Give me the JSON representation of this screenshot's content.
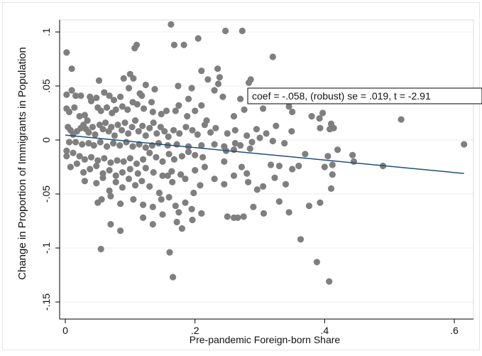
{
  "chart_data": {
    "type": "scatter",
    "title": "",
    "xlabel": "Pre-pandemic Foreign-born Share",
    "ylabel": "Change in Proportion of Immigrants in Population",
    "xlim": [
      0,
      0.62
    ],
    "ylim": [
      -0.155,
      0.112
    ],
    "x_ticks": [
      {
        "value": 0,
        "label": "0"
      },
      {
        "value": 0.2,
        "label": ".2"
      },
      {
        "value": 0.4,
        "label": ".4"
      },
      {
        "value": 0.6,
        "label": ".6"
      }
    ],
    "y_ticks": [
      {
        "value": 0.1,
        "label": ".1"
      },
      {
        "value": 0.05,
        "label": ".05"
      },
      {
        "value": 0,
        "label": "0"
      },
      {
        "value": -0.05,
        "label": "-.05"
      },
      {
        "value": -0.1,
        "label": "-.1"
      },
      {
        "value": -0.15,
        "label": "-.15"
      }
    ],
    "grid": "horizontal",
    "annotation": "coef = -.058, (robust) se = .019, t = -2.91",
    "fit_line": {
      "x": [
        0,
        0.615
      ],
      "y": [
        0.0045,
        -0.031
      ],
      "color": "#1f4e79"
    },
    "point_color": "#7f7f7f",
    "series": [
      {
        "points": [
          [
            0.163,
            0.107
          ],
          [
            0.168,
            0.088
          ],
          [
            0.183,
            0.088
          ],
          [
            0.205,
            0.094
          ],
          [
            0.247,
            0.101
          ],
          [
            0.273,
            0.101
          ],
          [
            0.107,
            0.085
          ],
          [
            0.11,
            0.088
          ],
          [
            0.002,
            0.081
          ],
          [
            0.01,
            0.066
          ],
          [
            0.32,
            0.077
          ],
          [
            0.21,
            0.064
          ],
          [
            0.235,
            0.066
          ],
          [
            0.052,
            0.055
          ],
          [
            0.09,
            0.057
          ],
          [
            0.1,
            0.061
          ],
          [
            0.105,
            0.057
          ],
          [
            0.124,
            0.051
          ],
          [
            0.138,
            0.047
          ],
          [
            0.174,
            0.05
          ],
          [
            0.195,
            0.048
          ],
          [
            0.22,
            0.056
          ],
          [
            0.238,
            0.058
          ],
          [
            0.236,
            0.052
          ],
          [
            0.286,
            0.056
          ],
          [
            0.283,
            0.053
          ],
          [
            0.002,
            0.042
          ],
          [
            0.01,
            0.046
          ],
          [
            0.016,
            0.041
          ],
          [
            0.024,
            0.041
          ],
          [
            0.038,
            0.04
          ],
          [
            0.04,
            0.036
          ],
          [
            0.048,
            0.039
          ],
          [
            0.06,
            0.044
          ],
          [
            0.068,
            0.041
          ],
          [
            0.075,
            0.037
          ],
          [
            0.085,
            0.04
          ],
          [
            0.098,
            0.048
          ],
          [
            0.115,
            0.043
          ],
          [
            0.118,
            0.041
          ],
          [
            0.133,
            0.035
          ],
          [
            0.175,
            0.032
          ],
          [
            0.19,
            0.038
          ],
          [
            0.21,
            0.032
          ],
          [
            0.23,
            0.046
          ],
          [
            0.243,
            0.04
          ],
          [
            0.27,
            0.038
          ],
          [
            0.287,
            0.042
          ],
          [
            0.305,
            0.029
          ],
          [
            0.35,
            0.026
          ],
          [
            0.345,
            0.031
          ],
          [
            0.38,
            0.022
          ],
          [
            0.397,
            0.025
          ],
          [
            0.002,
            0.029
          ],
          [
            0.006,
            0.026
          ],
          [
            0.014,
            0.03
          ],
          [
            0.022,
            0.022
          ],
          [
            0.03,
            0.023
          ],
          [
            0.034,
            0.018
          ],
          [
            0.05,
            0.03
          ],
          [
            0.055,
            0.027
          ],
          [
            0.064,
            0.03
          ],
          [
            0.072,
            0.025
          ],
          [
            0.078,
            0.028
          ],
          [
            0.088,
            0.031
          ],
          [
            0.096,
            0.028
          ],
          [
            0.104,
            0.035
          ],
          [
            0.111,
            0.033
          ],
          [
            0.121,
            0.029
          ],
          [
            0.135,
            0.026
          ],
          [
            0.148,
            0.024
          ],
          [
            0.156,
            0.027
          ],
          [
            0.17,
            0.027
          ],
          [
            0.188,
            0.022
          ],
          [
            0.2,
            0.027
          ],
          [
            0.218,
            0.018
          ],
          [
            0.26,
            0.022
          ],
          [
            0.276,
            0.028
          ],
          [
            0.392,
            0.02
          ],
          [
            0.41,
            0.015
          ],
          [
            0.414,
            0.011
          ],
          [
            0.518,
            0.019
          ],
          [
            0.004,
            0.012
          ],
          [
            0.008,
            0.009
          ],
          [
            0.012,
            0.005
          ],
          [
            0.018,
            0.008
          ],
          [
            0.024,
            0.011
          ],
          [
            0.028,
            0.014
          ],
          [
            0.032,
            0.01
          ],
          [
            0.036,
            0.007
          ],
          [
            0.042,
            0.012
          ],
          [
            0.046,
            0.005
          ],
          [
            0.053,
            0.014
          ],
          [
            0.058,
            0.01
          ],
          [
            0.062,
            0.016
          ],
          [
            0.067,
            0.008
          ],
          [
            0.071,
            0.012
          ],
          [
            0.076,
            0.004
          ],
          [
            0.081,
            0.014
          ],
          [
            0.087,
            0.009
          ],
          [
            0.092,
            0.016
          ],
          [
            0.097,
            0.006
          ],
          [
            0.103,
            0.012
          ],
          [
            0.108,
            0.018
          ],
          [
            0.113,
            0.008
          ],
          [
            0.119,
            0.013
          ],
          [
            0.124,
            0.004
          ],
          [
            0.13,
            0.011
          ],
          [
            0.136,
            0.016
          ],
          [
            0.141,
            0.006
          ],
          [
            0.147,
            0.012
          ],
          [
            0.153,
            0.008
          ],
          [
            0.159,
            0.003
          ],
          [
            0.167,
            0.009
          ],
          [
            0.176,
            0.006
          ],
          [
            0.186,
            0.012
          ],
          [
            0.196,
            0.009
          ],
          [
            0.204,
            0.005
          ],
          [
            0.215,
            0.014
          ],
          [
            0.224,
            0.007
          ],
          [
            0.232,
            0.011
          ],
          [
            0.25,
            0.006
          ],
          [
            0.262,
            0.009
          ],
          [
            0.28,
            0.004
          ],
          [
            0.295,
            0.01
          ],
          [
            0.31,
            0.006
          ],
          [
            0.325,
            0.013
          ],
          [
            0.349,
            0.008
          ],
          [
            0.408,
            0.01
          ],
          [
            0.393,
            0.011
          ],
          [
            0.006,
            -0.002
          ],
          [
            0.016,
            -0.002
          ],
          [
            0.026,
            -0.004
          ],
          [
            0.036,
            -0.003
          ],
          [
            0.044,
            -0.005
          ],
          [
            0.054,
            -0.002
          ],
          [
            0.064,
            -0.006
          ],
          [
            0.074,
            -0.003
          ],
          [
            0.084,
            -0.005
          ],
          [
            0.094,
            -0.002
          ],
          [
            0.104,
            -0.006
          ],
          [
            0.114,
            -0.004
          ],
          [
            0.124,
            -0.007
          ],
          [
            0.134,
            -0.005
          ],
          [
            0.144,
            -0.003
          ],
          [
            0.158,
            -0.005
          ],
          [
            0.172,
            -0.004
          ],
          [
            0.19,
            -0.006
          ],
          [
            0.21,
            -0.005
          ],
          [
            0.23,
            -0.004
          ],
          [
            0.245,
            -0.006
          ],
          [
            0.262,
            -0.003
          ],
          [
            0.27,
            -0.005
          ],
          [
            0.288,
            -0.002
          ],
          [
            0.3,
            0.002
          ],
          [
            0.32,
            -0.001
          ],
          [
            0.338,
            -0.003
          ],
          [
            0.002,
            -0.01
          ],
          [
            0.002,
            -0.015
          ],
          [
            0.012,
            -0.012
          ],
          [
            0.022,
            -0.015
          ],
          [
            0.03,
            -0.018
          ],
          [
            0.04,
            -0.016
          ],
          [
            0.05,
            -0.019
          ],
          [
            0.06,
            -0.017
          ],
          [
            0.07,
            -0.021
          ],
          [
            0.08,
            -0.019
          ],
          [
            0.09,
            -0.02
          ],
          [
            0.1,
            -0.017
          ],
          [
            0.11,
            -0.022
          ],
          [
            0.12,
            -0.018
          ],
          [
            0.13,
            -0.012
          ],
          [
            0.14,
            -0.016
          ],
          [
            0.15,
            -0.02
          ],
          [
            0.16,
            -0.013
          ],
          [
            0.168,
            -0.018
          ],
          [
            0.18,
            -0.015
          ],
          [
            0.19,
            -0.011
          ],
          [
            0.2,
            -0.014
          ],
          [
            0.212,
            -0.016
          ],
          [
            0.248,
            -0.01
          ],
          [
            0.26,
            -0.009
          ],
          [
            0.285,
            -0.008
          ],
          [
            0.37,
            -0.013
          ],
          [
            0.405,
            -0.015
          ],
          [
            0.42,
            -0.009
          ],
          [
            0.443,
            -0.014
          ],
          [
            0.445,
            -0.02
          ],
          [
            0.008,
            -0.025
          ],
          [
            0.018,
            -0.022
          ],
          [
            0.028,
            -0.03
          ],
          [
            0.038,
            -0.027
          ],
          [
            0.048,
            -0.024
          ],
          [
            0.058,
            -0.031
          ],
          [
            0.068,
            -0.028
          ],
          [
            0.078,
            -0.033
          ],
          [
            0.088,
            -0.03
          ],
          [
            0.1,
            -0.027
          ],
          [
            0.112,
            -0.031
          ],
          [
            0.124,
            -0.026
          ],
          [
            0.136,
            -0.03
          ],
          [
            0.15,
            -0.033
          ],
          [
            0.164,
            -0.029
          ],
          [
            0.178,
            -0.032
          ],
          [
            0.2,
            -0.028
          ],
          [
            0.215,
            -0.025
          ],
          [
            0.245,
            -0.02
          ],
          [
            0.272,
            -0.025
          ],
          [
            0.28,
            -0.031
          ],
          [
            0.317,
            -0.023
          ],
          [
            0.33,
            -0.024
          ],
          [
            0.35,
            -0.027
          ],
          [
            0.36,
            -0.024
          ],
          [
            0.4,
            -0.025
          ],
          [
            0.412,
            -0.023
          ],
          [
            0.49,
            -0.024
          ],
          [
            0.03,
            -0.038
          ],
          [
            0.048,
            -0.04
          ],
          [
            0.058,
            -0.035
          ],
          [
            0.068,
            -0.047
          ],
          [
            0.078,
            -0.039
          ],
          [
            0.088,
            -0.044
          ],
          [
            0.098,
            -0.036
          ],
          [
            0.108,
            -0.042
          ],
          [
            0.118,
            -0.038
          ],
          [
            0.13,
            -0.043
          ],
          [
            0.145,
            -0.049
          ],
          [
            0.158,
            -0.033
          ],
          [
            0.165,
            -0.039
          ],
          [
            0.185,
            -0.036
          ],
          [
            0.198,
            -0.049
          ],
          [
            0.208,
            -0.042
          ],
          [
            0.23,
            -0.036
          ],
          [
            0.245,
            -0.041
          ],
          [
            0.26,
            -0.033
          ],
          [
            0.282,
            -0.039
          ],
          [
            0.296,
            -0.046
          ],
          [
            0.305,
            -0.043
          ],
          [
            0.323,
            -0.035
          ],
          [
            0.34,
            -0.041
          ],
          [
            0.412,
            -0.032
          ],
          [
            0.41,
            -0.045
          ],
          [
            0.05,
            -0.058
          ],
          [
            0.056,
            -0.055
          ],
          [
            0.07,
            -0.052
          ],
          [
            0.085,
            -0.059
          ],
          [
            0.105,
            -0.055
          ],
          [
            0.12,
            -0.06
          ],
          [
            0.135,
            -0.062
          ],
          [
            0.148,
            -0.055
          ],
          [
            0.16,
            -0.053
          ],
          [
            0.17,
            -0.061
          ],
          [
            0.175,
            -0.067
          ],
          [
            0.185,
            -0.058
          ],
          [
            0.195,
            -0.064
          ],
          [
            0.21,
            -0.068
          ],
          [
            0.25,
            -0.071
          ],
          [
            0.26,
            -0.072
          ],
          [
            0.266,
            -0.072
          ],
          [
            0.275,
            -0.071
          ],
          [
            0.29,
            -0.062
          ],
          [
            0.306,
            -0.068
          ],
          [
            0.33,
            -0.057
          ],
          [
            0.345,
            -0.067
          ],
          [
            0.376,
            -0.061
          ],
          [
            0.393,
            -0.058
          ],
          [
            0.07,
            -0.078
          ],
          [
            0.085,
            -0.084
          ],
          [
            0.12,
            -0.072
          ],
          [
            0.135,
            -0.078
          ],
          [
            0.15,
            -0.069
          ],
          [
            0.172,
            -0.076
          ],
          [
            0.18,
            -0.082
          ],
          [
            0.196,
            -0.074
          ],
          [
            0.363,
            -0.092
          ],
          [
            0.055,
            -0.101
          ],
          [
            0.161,
            -0.104
          ],
          [
            0.166,
            -0.127
          ],
          [
            0.388,
            -0.113
          ],
          [
            0.407,
            -0.131
          ],
          [
            0.615,
            -0.004
          ]
        ]
      }
    ]
  }
}
